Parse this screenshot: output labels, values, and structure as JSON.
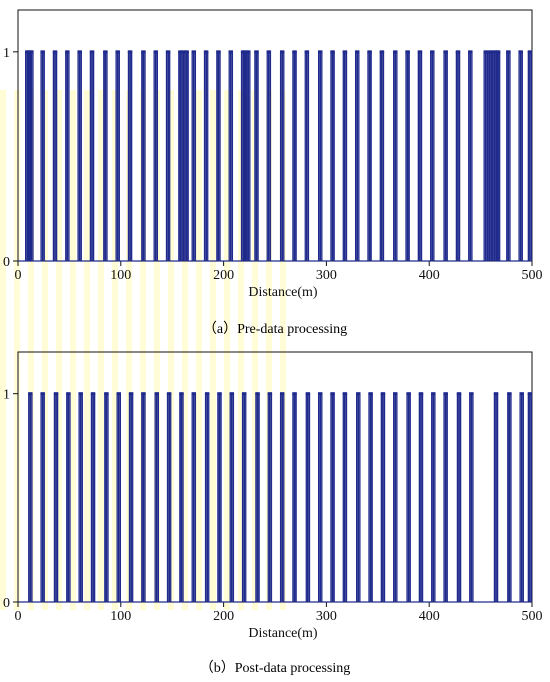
{
  "chart_data": [
    {
      "type": "bar",
      "caption": "（a）Pre-data processing",
      "xlabel": "Distance(m)",
      "ylabel": "",
      "xlim": [
        0,
        500
      ],
      "ylim": [
        0,
        1.2
      ],
      "xticks": [
        0,
        100,
        200,
        300,
        400,
        500
      ],
      "yticks": [
        0,
        1
      ],
      "color": "#1f2a8c",
      "x": [
        9,
        11,
        13,
        24,
        36,
        48,
        60,
        72,
        85,
        97,
        109,
        122,
        134,
        146,
        158,
        161,
        164,
        171,
        183,
        195,
        207,
        219,
        221,
        224,
        232,
        244,
        257,
        269,
        281,
        294,
        306,
        318,
        330,
        342,
        354,
        367,
        379,
        391,
        403,
        416,
        428,
        440,
        455,
        459,
        462,
        465,
        467,
        477,
        489,
        498
      ],
      "values": [
        1,
        1,
        1,
        1,
        1,
        1,
        1,
        1,
        1,
        1,
        1,
        1,
        1,
        1,
        1,
        1,
        1,
        1,
        1,
        1,
        1,
        1,
        1,
        1,
        1,
        1,
        1,
        1,
        1,
        1,
        1,
        1,
        1,
        1,
        1,
        1,
        1,
        1,
        1,
        1,
        1,
        1,
        1,
        1,
        1,
        1,
        1,
        1,
        1,
        1
      ]
    },
    {
      "type": "bar",
      "caption": "（b）Post-data processing",
      "xlabel": "Distance(m)",
      "ylabel": "",
      "xlim": [
        0,
        500
      ],
      "ylim": [
        0,
        1.2
      ],
      "xticks": [
        0,
        100,
        200,
        300,
        400,
        500
      ],
      "yticks": [
        0,
        1
      ],
      "color": "#1f2a8c",
      "x": [
        12,
        24,
        37,
        49,
        61,
        73,
        86,
        98,
        110,
        122,
        135,
        147,
        159,
        171,
        184,
        196,
        208,
        220,
        233,
        245,
        257,
        269,
        282,
        294,
        306,
        318,
        331,
        343,
        355,
        367,
        380,
        392,
        404,
        416,
        429,
        441,
        465,
        478,
        490,
        498
      ],
      "values": [
        1,
        1,
        1,
        1,
        1,
        1,
        1,
        1,
        1,
        1,
        1,
        1,
        1,
        1,
        1,
        1,
        1,
        1,
        1,
        1,
        1,
        1,
        1,
        1,
        1,
        1,
        1,
        1,
        1,
        1,
        1,
        1,
        1,
        1,
        1,
        1,
        1,
        1,
        1,
        1
      ]
    }
  ]
}
